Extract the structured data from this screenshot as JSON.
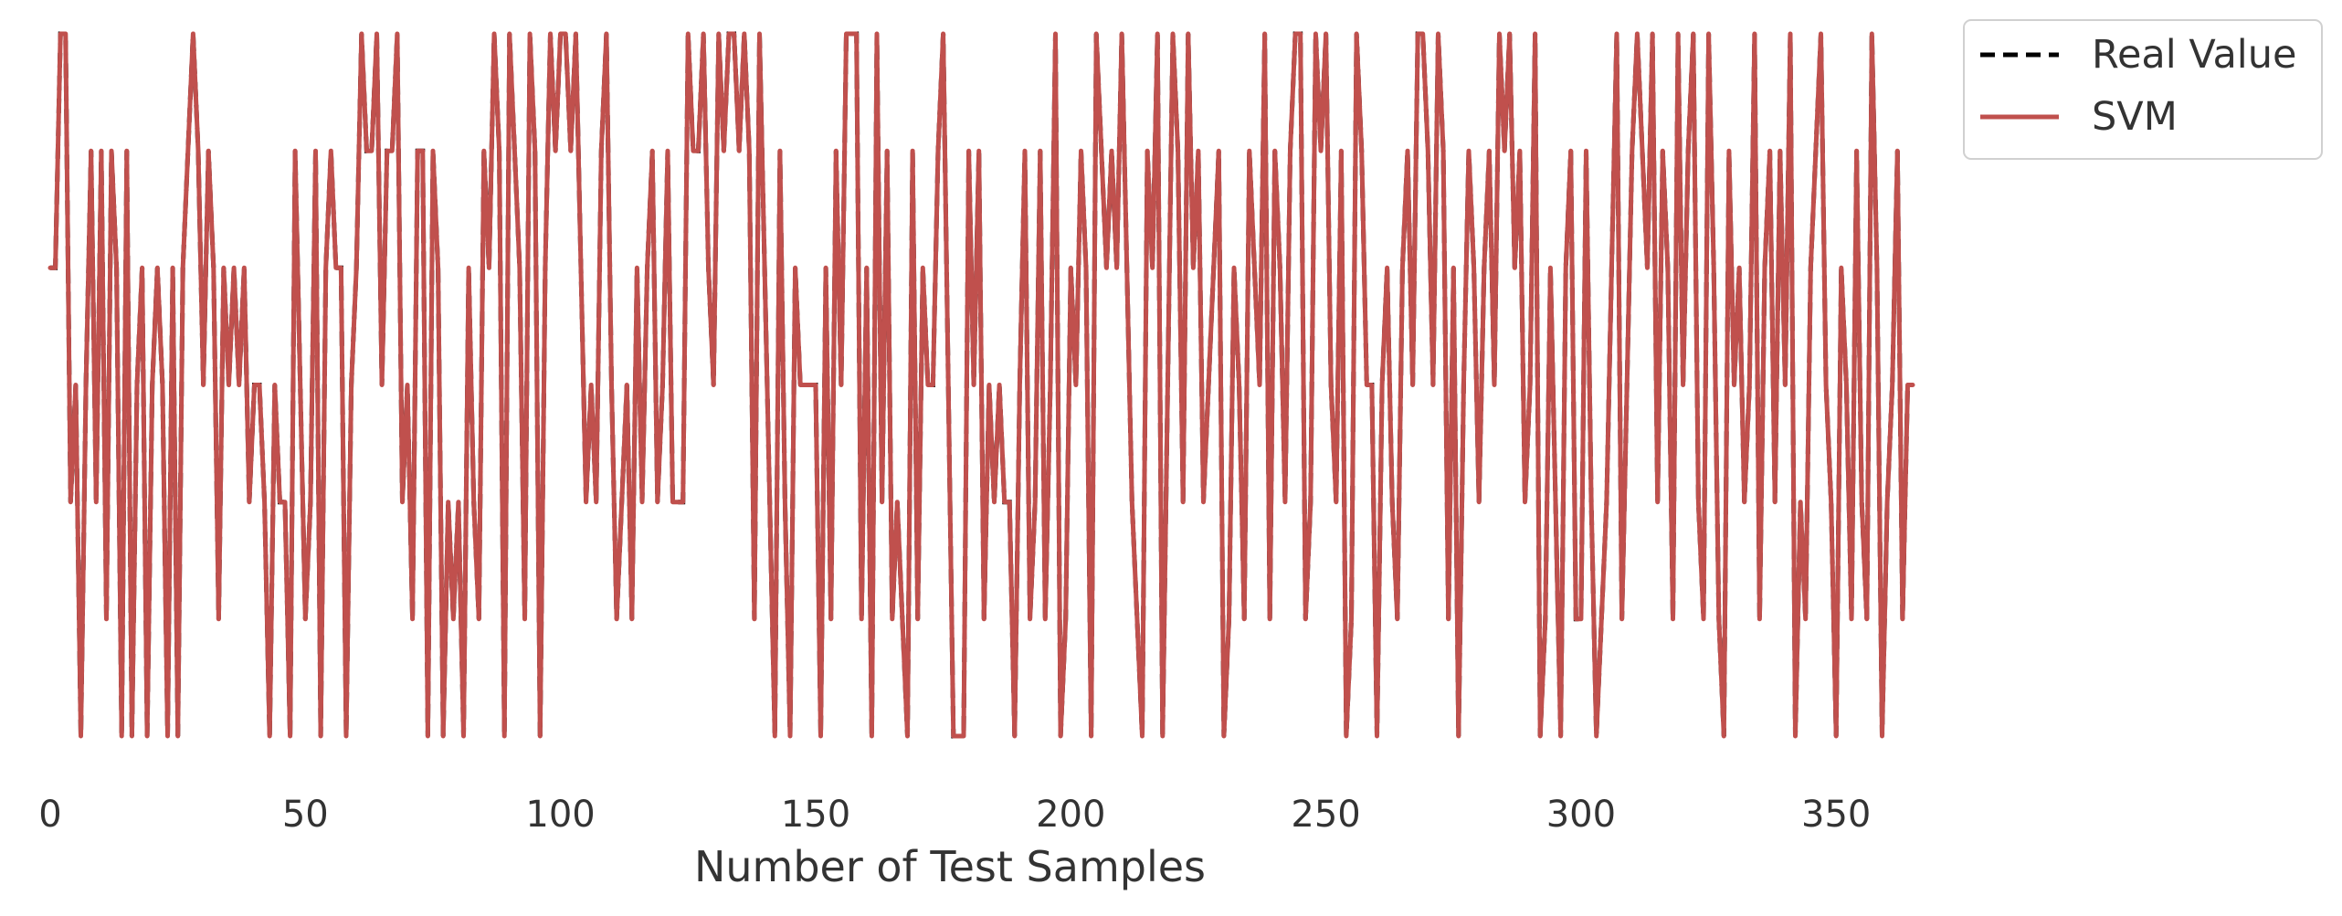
{
  "chart_data": {
    "type": "line",
    "title": "",
    "xlabel": "Number of Test Samples",
    "ylabel": "",
    "xlim": [
      0,
      353
    ],
    "ylim": [
      0,
      6
    ],
    "grid": false,
    "legend_position": "top-right, outside plot",
    "x_ticks": [
      0,
      50,
      100,
      150,
      200,
      250,
      300,
      350
    ],
    "x_tick_labels": [
      "0",
      "50",
      "100",
      "150",
      "200",
      "250",
      "300",
      "350"
    ],
    "y_tick_labels": [],
    "series": [
      {
        "name": "Real Value",
        "style": "dashed",
        "color": "#000000",
        "values": [
          4,
          4,
          6,
          6,
          2,
          3,
          0,
          3,
          5,
          2,
          5,
          1,
          5,
          4,
          0,
          5,
          0,
          3,
          4,
          0,
          3,
          4,
          3,
          0,
          4,
          0,
          4,
          5,
          6,
          5,
          3,
          5,
          4,
          1,
          4,
          3,
          4,
          3,
          4,
          2,
          3,
          3,
          2,
          0,
          3,
          2,
          2,
          0,
          5,
          3,
          1,
          2,
          5,
          0,
          4,
          5,
          4,
          4,
          0,
          3,
          4,
          6,
          5,
          5,
          6,
          3,
          5,
          5,
          6,
          2,
          3,
          1,
          5,
          5,
          0,
          5,
          4,
          0,
          2,
          1,
          2,
          0,
          4,
          2,
          1,
          5,
          4,
          6,
          5,
          0,
          6,
          5,
          4,
          1,
          6,
          5,
          0,
          4,
          6,
          5,
          6,
          6,
          5,
          6,
          4,
          2,
          3,
          2,
          5,
          6,
          3,
          1,
          2,
          3,
          1,
          4,
          2,
          4,
          5,
          2,
          3,
          5,
          2,
          2,
          2,
          6,
          5,
          5,
          6,
          4,
          3,
          6,
          5,
          6,
          6,
          5,
          6,
          5,
          1,
          6,
          4,
          2,
          0,
          5,
          2,
          0,
          4,
          3,
          3,
          3,
          3,
          0,
          4,
          1,
          5,
          3,
          6,
          6,
          6,
          1,
          4,
          0,
          6,
          2,
          5,
          1,
          2,
          1,
          0,
          5,
          1,
          4,
          3,
          3,
          5,
          6,
          3,
          0,
          0,
          0,
          5,
          3,
          5,
          1,
          3,
          2,
          3,
          2,
          2,
          0,
          3,
          5,
          1,
          2,
          5,
          1,
          3,
          6,
          0,
          1,
          4,
          3,
          5,
          4,
          0,
          6,
          5,
          4,
          5,
          4,
          6,
          4,
          2,
          1,
          0,
          5,
          4,
          6,
          0,
          3,
          6,
          5,
          2,
          6,
          4,
          5,
          2,
          3,
          4,
          5,
          0,
          1,
          4,
          3,
          1,
          5,
          4,
          3,
          6,
          1,
          5,
          4,
          2,
          5,
          6,
          6,
          1,
          2,
          6,
          5,
          6,
          3,
          2,
          5,
          0,
          1,
          6,
          5,
          3,
          3,
          0,
          3,
          4,
          2,
          1,
          4,
          5,
          3,
          6,
          6,
          5,
          3,
          6,
          5,
          1,
          4,
          0,
          3,
          5,
          4,
          2,
          4,
          5,
          3,
          6,
          5,
          6,
          4,
          5,
          2,
          3,
          6,
          0,
          1,
          4,
          2,
          0,
          4,
          5,
          1,
          1,
          5,
          2,
          0,
          1,
          2,
          4,
          6,
          1,
          3,
          5,
          6,
          5,
          4,
          6,
          2,
          5,
          4,
          1,
          6,
          3,
          5,
          6,
          2,
          1,
          6,
          4,
          1,
          0,
          5,
          3,
          4,
          2,
          3,
          6,
          1,
          4,
          5,
          2,
          5,
          3,
          6,
          0,
          2,
          1,
          4,
          5,
          6,
          3,
          2,
          0,
          4,
          3,
          1,
          5,
          2,
          1,
          6,
          4,
          0,
          2,
          3,
          5,
          1,
          3,
          3
        ]
      },
      {
        "name": "SVM",
        "style": "solid",
        "color": "#c0504d",
        "values": [
          4,
          4,
          6,
          6,
          2,
          3,
          0,
          3,
          5,
          2,
          5,
          1,
          5,
          4,
          0,
          5,
          0,
          3,
          4,
          0,
          3,
          4,
          3,
          0,
          4,
          0,
          4,
          5,
          6,
          5,
          3,
          5,
          4,
          1,
          4,
          3,
          4,
          3,
          4,
          2,
          3,
          3,
          2,
          0,
          3,
          2,
          2,
          0,
          5,
          3,
          1,
          2,
          5,
          0,
          4,
          5,
          4,
          4,
          0,
          3,
          4,
          6,
          5,
          5,
          6,
          3,
          5,
          5,
          6,
          2,
          3,
          1,
          5,
          5,
          0,
          5,
          4,
          0,
          2,
          1,
          2,
          0,
          4,
          2,
          1,
          5,
          4,
          6,
          5,
          0,
          6,
          5,
          4,
          1,
          6,
          5,
          0,
          4,
          6,
          5,
          6,
          6,
          5,
          6,
          4,
          2,
          3,
          2,
          5,
          6,
          3,
          1,
          2,
          3,
          1,
          4,
          2,
          4,
          5,
          2,
          3,
          5,
          2,
          2,
          2,
          6,
          5,
          5,
          6,
          4,
          3,
          6,
          5,
          6,
          6,
          5,
          6,
          5,
          1,
          6,
          4,
          2,
          0,
          5,
          2,
          0,
          4,
          3,
          3,
          3,
          3,
          0,
          4,
          1,
          5,
          3,
          6,
          6,
          6,
          1,
          4,
          0,
          6,
          2,
          5,
          1,
          2,
          1,
          0,
          5,
          1,
          4,
          3,
          3,
          5,
          6,
          3,
          0,
          0,
          0,
          5,
          3,
          5,
          1,
          3,
          2,
          3,
          2,
          2,
          0,
          3,
          5,
          1,
          2,
          5,
          1,
          3,
          6,
          0,
          1,
          4,
          3,
          5,
          4,
          0,
          6,
          5,
          4,
          5,
          4,
          6,
          4,
          2,
          1,
          0,
          5,
          4,
          6,
          0,
          3,
          6,
          5,
          2,
          6,
          4,
          5,
          2,
          3,
          4,
          5,
          0,
          1,
          4,
          3,
          1,
          5,
          4,
          3,
          6,
          1,
          5,
          4,
          2,
          5,
          6,
          6,
          1,
          2,
          6,
          5,
          6,
          3,
          2,
          5,
          0,
          1,
          6,
          5,
          3,
          3,
          0,
          3,
          4,
          2,
          1,
          4,
          5,
          3,
          6,
          6,
          5,
          3,
          6,
          5,
          1,
          4,
          0,
          3,
          5,
          4,
          2,
          4,
          5,
          3,
          6,
          5,
          6,
          4,
          5,
          2,
          3,
          6,
          0,
          1,
          4,
          2,
          0,
          4,
          5,
          1,
          1,
          5,
          2,
          0,
          1,
          2,
          4,
          6,
          1,
          3,
          5,
          6,
          5,
          4,
          6,
          2,
          5,
          4,
          1,
          6,
          3,
          5,
          6,
          2,
          1,
          6,
          4,
          1,
          0,
          5,
          3,
          4,
          2,
          3,
          6,
          1,
          4,
          5,
          2,
          5,
          3,
          6,
          0,
          2,
          1,
          4,
          5,
          6,
          3,
          2,
          0,
          4,
          3,
          1,
          5,
          2,
          1,
          6,
          4,
          0,
          2,
          3,
          5,
          1,
          3,
          3
        ]
      }
    ]
  }
}
